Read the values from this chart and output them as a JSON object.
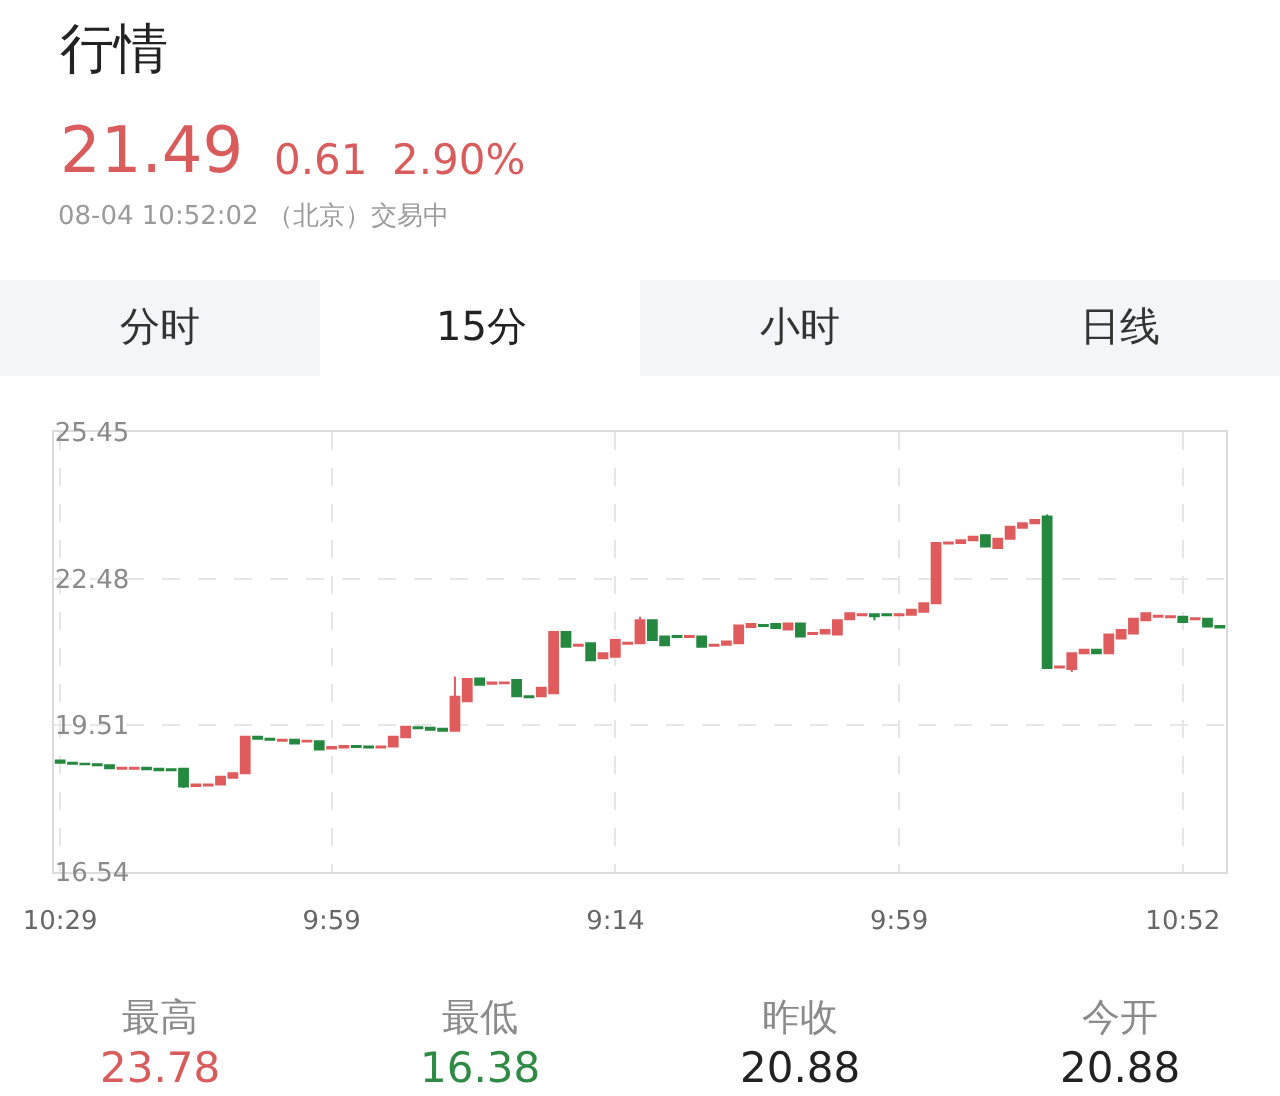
{
  "chart_data": {
    "type": "candlestick",
    "title": "行情",
    "annotations": [
      "21.49",
      "0.61",
      "2.90%",
      "08-04 10:52:02 （北京）交易中",
      "分时",
      "15分",
      "小时",
      "日线",
      "最高",
      "23.78",
      "最低",
      "16.38",
      "昨收",
      "20.88",
      "今开",
      "20.88"
    ],
    "categories": [
      "10:29",
      null,
      null,
      null,
      null,
      null,
      null,
      null,
      null,
      null,
      null,
      null,
      null,
      null,
      null,
      null,
      null,
      null,
      null,
      null,
      null,
      null,
      "9:59",
      null,
      null,
      null,
      null,
      null,
      null,
      null,
      null,
      null,
      null,
      null,
      null,
      null,
      null,
      null,
      null,
      null,
      null,
      null,
      null,
      null,
      null,
      "9:14",
      null,
      null,
      null,
      null,
      null,
      null,
      null,
      null,
      null,
      null,
      null,
      null,
      null,
      null,
      null,
      null,
      null,
      null,
      null,
      null,
      null,
      null,
      "9:59",
      null,
      null,
      null,
      null,
      null,
      null,
      null,
      null,
      null,
      null,
      null,
      null,
      null,
      null,
      null,
      null,
      null,
      null,
      null,
      null,
      null,
      null,
      "10:52",
      null,
      null,
      null
    ],
    "ohlc": [
      [
        18.8,
        18.8,
        18.74,
        18.75
      ],
      [
        18.75,
        18.75,
        18.73,
        18.73
      ],
      [
        18.73,
        18.73,
        18.72,
        18.72
      ],
      [
        18.72,
        18.72,
        18.7,
        18.7
      ],
      [
        18.7,
        18.7,
        18.64,
        18.64
      ],
      [
        18.63,
        18.65,
        18.63,
        18.65
      ],
      [
        18.63,
        18.65,
        18.63,
        18.65
      ],
      [
        18.65,
        18.65,
        18.62,
        18.62
      ],
      [
        18.63,
        18.63,
        18.6,
        18.6
      ],
      [
        18.62,
        18.62,
        18.6,
        18.6
      ],
      [
        18.63,
        18.64,
        18.24,
        18.27
      ],
      [
        18.28,
        18.31,
        18.28,
        18.31
      ],
      [
        18.29,
        18.31,
        18.29,
        18.31
      ],
      [
        18.31,
        18.47,
        18.31,
        18.47
      ],
      [
        18.45,
        18.54,
        18.45,
        18.54
      ],
      [
        18.54,
        19.28,
        18.54,
        19.28
      ],
      [
        19.28,
        19.28,
        19.24,
        19.24
      ],
      [
        19.24,
        19.24,
        19.22,
        19.22
      ],
      [
        19.2,
        19.22,
        19.2,
        19.22
      ],
      [
        19.22,
        19.22,
        19.14,
        19.14
      ],
      [
        19.18,
        19.2,
        19.18,
        19.2
      ],
      [
        19.19,
        19.19,
        19.02,
        19.02
      ],
      [
        19.04,
        19.07,
        19.04,
        19.07
      ],
      [
        19.06,
        19.09,
        19.06,
        19.09
      ],
      [
        19.09,
        19.09,
        19.07,
        19.07
      ],
      [
        19.08,
        19.08,
        19.06,
        19.06
      ],
      [
        19.06,
        19.08,
        19.06,
        19.08
      ],
      [
        19.08,
        19.28,
        19.08,
        19.28
      ],
      [
        19.27,
        19.48,
        19.27,
        19.48
      ],
      [
        19.47,
        19.47,
        19.45,
        19.45
      ],
      [
        19.46,
        19.46,
        19.42,
        19.42
      ],
      [
        19.44,
        19.44,
        19.4,
        19.4
      ],
      [
        19.4,
        20.5,
        19.39,
        20.09
      ],
      [
        20.0,
        20.45,
        20.0,
        20.45
      ],
      [
        20.46,
        20.46,
        20.33,
        20.33
      ],
      [
        20.35,
        20.38,
        20.35,
        20.38
      ],
      [
        20.36,
        20.38,
        20.36,
        20.38
      ],
      [
        20.43,
        20.43,
        20.1,
        20.1
      ],
      [
        20.1,
        20.1,
        20.08,
        20.08
      ],
      [
        20.1,
        20.27,
        20.1,
        20.27
      ],
      [
        20.16,
        21.4,
        20.16,
        21.4
      ],
      [
        21.4,
        21.4,
        21.1,
        21.1
      ],
      [
        21.12,
        21.14,
        21.12,
        21.14
      ],
      [
        21.17,
        21.17,
        20.83,
        20.83
      ],
      [
        20.87,
        20.97,
        20.87,
        20.97
      ],
      [
        20.9,
        21.24,
        20.9,
        21.24
      ],
      [
        21.16,
        21.18,
        21.16,
        21.18
      ],
      [
        21.17,
        21.71,
        21.17,
        21.64
      ],
      [
        21.64,
        21.64,
        21.24,
        21.24
      ],
      [
        21.31,
        21.31,
        21.13,
        21.13
      ],
      [
        21.32,
        21.32,
        21.3,
        21.3
      ],
      [
        21.3,
        21.32,
        21.3,
        21.32
      ],
      [
        21.31,
        21.31,
        21.1,
        21.1
      ],
      [
        21.12,
        21.14,
        21.12,
        21.14
      ],
      [
        21.14,
        21.21,
        21.14,
        21.21
      ],
      [
        21.17,
        21.53,
        21.17,
        21.53
      ],
      [
        21.5,
        21.56,
        21.5,
        21.56
      ],
      [
        21.54,
        21.54,
        21.52,
        21.52
      ],
      [
        21.56,
        21.56,
        21.48,
        21.48
      ],
      [
        21.45,
        21.57,
        21.45,
        21.57
      ],
      [
        21.57,
        21.57,
        21.31,
        21.31
      ],
      [
        21.36,
        21.38,
        21.36,
        21.38
      ],
      [
        21.37,
        21.44,
        21.37,
        21.44
      ],
      [
        21.35,
        21.64,
        21.35,
        21.64
      ],
      [
        21.66,
        21.78,
        21.66,
        21.78
      ],
      [
        21.74,
        21.76,
        21.74,
        21.76
      ],
      [
        21.76,
        21.78,
        21.64,
        21.72
      ],
      [
        21.76,
        21.76,
        21.74,
        21.74
      ],
      [
        21.74,
        21.76,
        21.74,
        21.76
      ],
      [
        21.75,
        21.85,
        21.75,
        21.85
      ],
      [
        21.81,
        21.98,
        21.81,
        21.98
      ],
      [
        21.98,
        23.2,
        21.98,
        23.2
      ],
      [
        23.19,
        23.21,
        23.19,
        23.21
      ],
      [
        23.2,
        23.26,
        23.2,
        23.26
      ],
      [
        23.26,
        23.33,
        23.26,
        23.33
      ],
      [
        23.36,
        23.36,
        23.13,
        23.13
      ],
      [
        23.1,
        23.29,
        23.1,
        23.29
      ],
      [
        23.29,
        23.53,
        23.29,
        23.53
      ],
      [
        23.51,
        23.6,
        23.51,
        23.6
      ],
      [
        23.6,
        23.67,
        23.6,
        23.67
      ],
      [
        23.74,
        23.78,
        20.65,
        20.67
      ],
      [
        20.68,
        20.7,
        20.68,
        20.7
      ],
      [
        20.65,
        20.97,
        20.59,
        20.97
      ],
      [
        20.97,
        21.04,
        20.97,
        21.04
      ],
      [
        21.04,
        21.04,
        20.97,
        20.97
      ],
      [
        20.97,
        21.35,
        20.97,
        21.35
      ],
      [
        21.27,
        21.44,
        21.27,
        21.44
      ],
      [
        21.37,
        21.67,
        21.37,
        21.67
      ],
      [
        21.64,
        21.78,
        21.64,
        21.78
      ],
      [
        21.71,
        21.73,
        21.71,
        21.73
      ],
      [
        21.7,
        21.72,
        21.7,
        21.72
      ],
      [
        21.71,
        21.71,
        21.6,
        21.6
      ],
      [
        21.66,
        21.68,
        21.66,
        21.68
      ],
      [
        21.67,
        21.67,
        21.51,
        21.51
      ],
      [
        21.52,
        21.52,
        21.49,
        21.49
      ]
    ],
    "colors": [
      "#24883f",
      "#24883f",
      "#24883f",
      "#24883f",
      "#24883f",
      "#e05c5c",
      "#e05c5c",
      "#24883f",
      "#24883f",
      "#24883f",
      "#24883f",
      "#e05c5c",
      "#e05c5c",
      "#e05c5c",
      "#e05c5c",
      "#e05c5c",
      "#24883f",
      "#24883f",
      "#e05c5c",
      "#24883f",
      "#e05c5c",
      "#24883f",
      "#e05c5c",
      "#e05c5c",
      "#24883f",
      "#24883f",
      "#e05c5c",
      "#e05c5c",
      "#e05c5c",
      "#24883f",
      "#24883f",
      "#24883f",
      "#e05c5c",
      "#e05c5c",
      "#24883f",
      "#e05c5c",
      "#e05c5c",
      "#24883f",
      "#24883f",
      "#e05c5c",
      "#e05c5c",
      "#24883f",
      "#e05c5c",
      "#24883f",
      "#e05c5c",
      "#e05c5c",
      "#e05c5c",
      "#e05c5c",
      "#24883f",
      "#24883f",
      "#24883f",
      "#e05c5c",
      "#24883f",
      "#e05c5c",
      "#e05c5c",
      "#e05c5c",
      "#e05c5c",
      "#24883f",
      "#24883f",
      "#e05c5c",
      "#24883f",
      "#e05c5c",
      "#e05c5c",
      "#e05c5c",
      "#e05c5c",
      "#e05c5c",
      "#24883f",
      "#24883f",
      "#e05c5c",
      "#e05c5c",
      "#e05c5c",
      "#e05c5c",
      "#e05c5c",
      "#e05c5c",
      "#e05c5c",
      "#24883f",
      "#e05c5c",
      "#e05c5c",
      "#e05c5c",
      "#e05c5c",
      "#24883f",
      "#e05c5c",
      "#e05c5c",
      "#e05c5c",
      "#24883f",
      "#e05c5c",
      "#e05c5c",
      "#e05c5c",
      "#e05c5c",
      "#e05c5c",
      "#e05c5c",
      "#24883f",
      "#e05c5c",
      "#24883f",
      "#24883f"
    ],
    "ylim": [
      16.54,
      25.45
    ],
    "yticks": [
      16.54,
      19.51,
      22.48,
      25.45
    ],
    "grid": true
  }
}
